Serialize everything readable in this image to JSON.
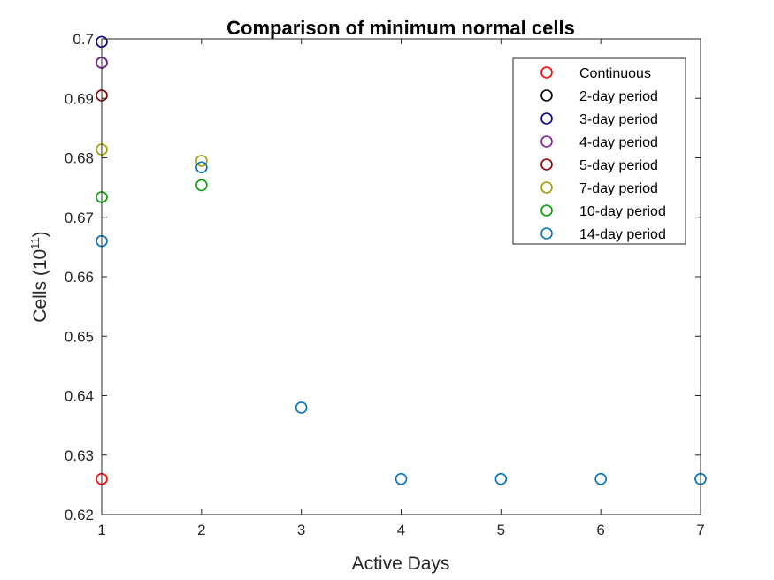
{
  "chart_data": {
    "type": "scatter",
    "title": "Comparison of minimum normal cells",
    "xlabel": "Active Days",
    "ylabel_main": "Cells (10",
    "ylabel_exp": "11",
    "ylabel_close": ")",
    "xlim": [
      1,
      7
    ],
    "ylim": [
      0.62,
      0.7
    ],
    "xticks": [
      1,
      2,
      3,
      4,
      5,
      6,
      7
    ],
    "yticks": [
      0.62,
      0.63,
      0.64,
      0.65,
      0.66,
      0.67,
      0.68,
      0.69,
      0.7
    ],
    "ytick_labels": [
      "0.62",
      "0.63",
      "0.64",
      "0.65",
      "0.66",
      "0.67",
      "0.68",
      "0.69",
      "0.7"
    ],
    "grid": false,
    "legend_position": "top-right",
    "marker": "open-circle",
    "series": [
      {
        "name": "Continuous",
        "color": "#ff0000",
        "points": [
          [
            1,
            0.626
          ]
        ]
      },
      {
        "name": "2-day period",
        "color": "#000000",
        "points": [
          [
            1,
            0.696
          ]
        ]
      },
      {
        "name": "3-day period",
        "color": "#00008b",
        "points": [
          [
            1,
            0.6995
          ]
        ]
      },
      {
        "name": "4-day period",
        "color": "#7e1e9c",
        "points": [
          [
            1,
            0.696
          ]
        ]
      },
      {
        "name": "5-day period",
        "color": "#8b0000",
        "points": [
          [
            1,
            0.6905
          ]
        ]
      },
      {
        "name": "7-day period",
        "color": "#a0a000",
        "points": [
          [
            1,
            0.6814
          ],
          [
            2,
            0.6795
          ]
        ]
      },
      {
        "name": "10-day period",
        "color": "#00a000",
        "points": [
          [
            1,
            0.6734
          ],
          [
            2,
            0.6754
          ]
        ]
      },
      {
        "name": "14-day period",
        "color": "#0072bd",
        "points": [
          [
            1,
            0.666
          ],
          [
            2,
            0.6784
          ],
          [
            3,
            0.638
          ],
          [
            4,
            0.626
          ],
          [
            5,
            0.626
          ],
          [
            6,
            0.626
          ],
          [
            7,
            0.626
          ]
        ]
      }
    ]
  }
}
